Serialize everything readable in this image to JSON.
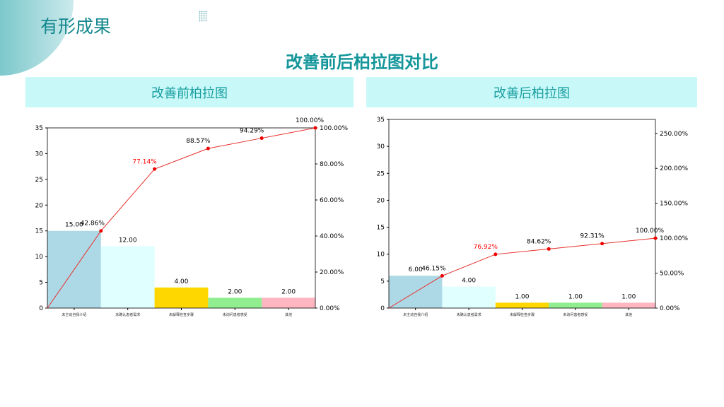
{
  "header": {
    "title": "有形成果",
    "main_title": "改善前后柏拉图对比"
  },
  "panels": [
    {
      "label": "改善前柏拉图"
    },
    {
      "label": "改善后柏拉图"
    }
  ],
  "colors": {
    "bars": [
      "#add8e6",
      "#e0ffff",
      "#ffd700",
      "#90ee90",
      "#ffb6c1"
    ],
    "line": "#e8302a",
    "highlight": "#ff0000"
  },
  "chart_data": [
    {
      "type": "bar",
      "title": "改善前柏拉图",
      "categories": [
        "未主动自我介绍",
        "未确认患者需求",
        "未解释检查步骤",
        "未询问患者感受",
        "其他"
      ],
      "values": [
        15,
        12,
        4,
        2,
        2
      ],
      "value_labels": [
        "15.00",
        "12.00",
        "4.00",
        "2.00",
        "2.00"
      ],
      "cumulative_pct": [
        42.86,
        77.14,
        88.57,
        94.29,
        100.0
      ],
      "cumulative_labels": [
        "42.86%",
        "77.14%",
        "88.57%",
        "94.29%",
        "100.00%"
      ],
      "highlight_index": 1,
      "ylim": [
        0,
        35
      ],
      "yticks": [
        0,
        5,
        10,
        15,
        20,
        25,
        30,
        35
      ],
      "y2lim": [
        0,
        100
      ],
      "y2ticks": [
        "0.00%",
        "20.00%",
        "40.00%",
        "60.00%",
        "80.00%",
        "100.00%"
      ],
      "y2tick_values": [
        0,
        20,
        40,
        60,
        80,
        100
      ]
    },
    {
      "type": "bar",
      "title": "改善后柏拉图",
      "categories": [
        "未主动自我介绍",
        "未确认患者需求",
        "未解释检查步骤",
        "未询问患者感受",
        "其他"
      ],
      "values": [
        6,
        4,
        1,
        1,
        1
      ],
      "value_labels": [
        "6.00",
        "4.00",
        "1.00",
        "1.00",
        "1.00"
      ],
      "cumulative_pct": [
        46.15,
        76.92,
        84.62,
        92.31,
        100.0
      ],
      "cumulative_labels": [
        "46.15%",
        "76.92%",
        "84.62%",
        "92.31%",
        "100.00%"
      ],
      "highlight_index": 1,
      "ylim": [
        0,
        35
      ],
      "yticks": [
        0,
        5,
        10,
        15,
        20,
        25,
        30,
        35
      ],
      "y2lim": [
        0,
        270
      ],
      "y2ticks": [
        "0.00%",
        "50.00%",
        "100.00%",
        "150.00%",
        "200.00%",
        "250.00%"
      ],
      "y2tick_values": [
        0,
        50,
        100,
        150,
        200,
        250
      ]
    }
  ]
}
